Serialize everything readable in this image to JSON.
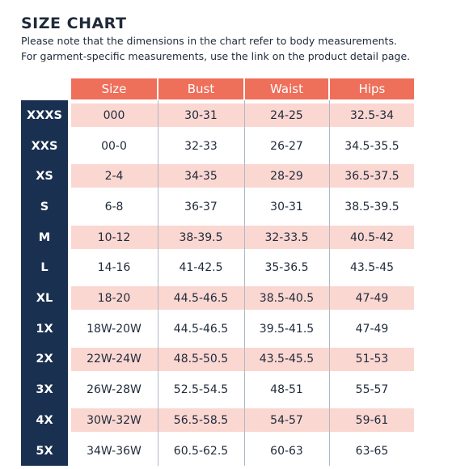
{
  "title": "SIZE CHART",
  "notes": [
    "Please note that the dimensions in the chart refer to body measurements.",
    "For garment-specific measurements, use the link on the product detail page."
  ],
  "columns": [
    "Size",
    "Bust",
    "Waist",
    "Hips"
  ],
  "rows": [
    {
      "label": "XXXS",
      "size": "000",
      "bust": "30-31",
      "waist": "24-25",
      "hips": "32.5-34"
    },
    {
      "label": "XXS",
      "size": "00-0",
      "bust": "32-33",
      "waist": "26-27",
      "hips": "34.5-35.5"
    },
    {
      "label": "XS",
      "size": "2-4",
      "bust": "34-35",
      "waist": "28-29",
      "hips": "36.5-37.5"
    },
    {
      "label": "S",
      "size": "6-8",
      "bust": "36-37",
      "waist": "30-31",
      "hips": "38.5-39.5"
    },
    {
      "label": "M",
      "size": "10-12",
      "bust": "38-39.5",
      "waist": "32-33.5",
      "hips": "40.5-42"
    },
    {
      "label": "L",
      "size": "14-16",
      "bust": "41-42.5",
      "waist": "35-36.5",
      "hips": "43.5-45"
    },
    {
      "label": "XL",
      "size": "18-20",
      "bust": "44.5-46.5",
      "waist": "38.5-40.5",
      "hips": "47-49"
    },
    {
      "label": "1X",
      "size": "18W-20W",
      "bust": "44.5-46.5",
      "waist": "39.5-41.5",
      "hips": "47-49"
    },
    {
      "label": "2X",
      "size": "22W-24W",
      "bust": "48.5-50.5",
      "waist": "43.5-45.5",
      "hips": "51-53"
    },
    {
      "label": "3X",
      "size": "26W-28W",
      "bust": "52.5-54.5",
      "waist": "48-51",
      "hips": "55-57"
    },
    {
      "label": "4X",
      "size": "30W-32W",
      "bust": "56.5-58.5",
      "waist": "54-57",
      "hips": "59-61"
    },
    {
      "label": "5X",
      "size": "34W-36W",
      "bust": "60.5-62.5",
      "waist": "60-63",
      "hips": "63-65"
    }
  ],
  "colors": {
    "header": "#ee6f5a",
    "sidebar": "#1a3050",
    "stripe": "#fbd7d2",
    "text": "#1f2a3a"
  }
}
